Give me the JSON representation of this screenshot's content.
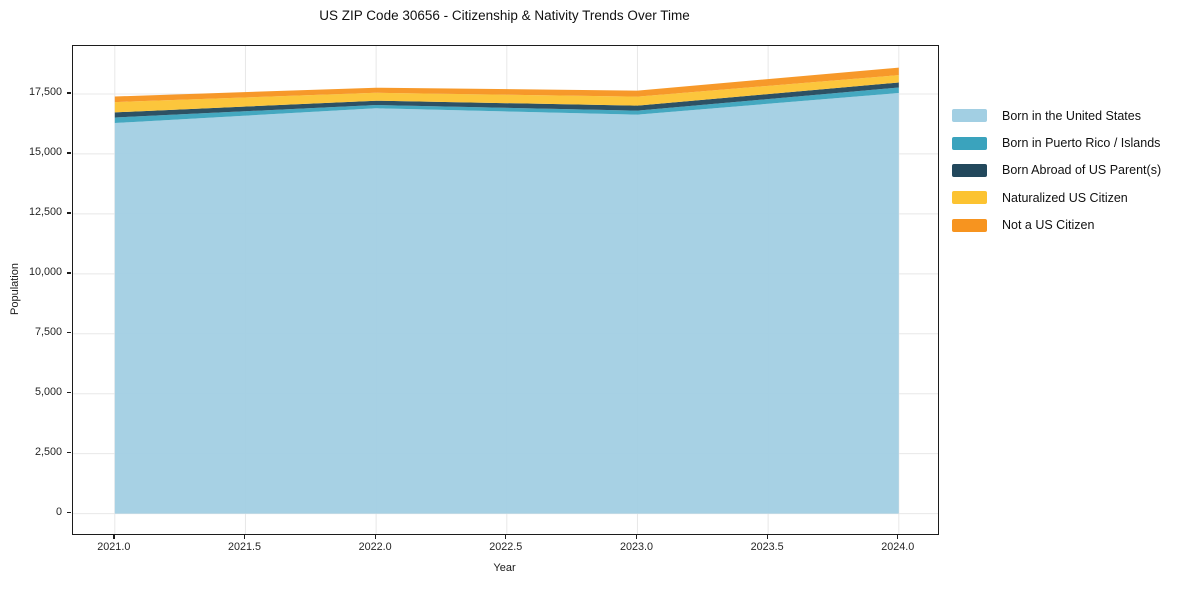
{
  "figure": {
    "title": "US ZIP Code 30656 - Citizenship & Nativity Trends Over Time"
  },
  "axes": {
    "xlabel": "Year",
    "ylabel": "Population",
    "xtick_labels": [
      "2021.0",
      "2021.5",
      "2022.0",
      "2022.5",
      "2023.0",
      "2023.5",
      "2024.0"
    ],
    "ytick_labels": [
      "0",
      "2,500",
      "5,000",
      "7,500",
      "10,000",
      "12,500",
      "15,000",
      "17,500"
    ]
  },
  "legend": {
    "position": "right",
    "items": [
      {
        "label": "Born in the United States",
        "color": "#a2cfe3"
      },
      {
        "label": "Born in Puerto Rico / Islands",
        "color": "#3aa3bd"
      },
      {
        "label": "Born Abroad of US Parent(s)",
        "color": "#22485c"
      },
      {
        "label": "Naturalized US Citizen",
        "color": "#fcc331"
      },
      {
        "label": "Not a US Citizen",
        "color": "#f7941f"
      }
    ]
  },
  "chart_data": {
    "type": "area",
    "stacked": true,
    "title": "US ZIP Code 30656 - Citizenship & Nativity Trends Over Time",
    "xlabel": "Year",
    "ylabel": "Population",
    "x": [
      2021,
      2022,
      2023,
      2024
    ],
    "series": [
      {
        "name": "Born in the United States",
        "color": "#a2cfe3",
        "values": [
          16290,
          16900,
          16640,
          17540
        ]
      },
      {
        "name": "Born in Puerto Rico / Islands",
        "color": "#3aa3bd",
        "values": [
          230,
          140,
          165,
          230
        ]
      },
      {
        "name": "Born Abroad of US Parent(s)",
        "color": "#22485c",
        "values": [
          210,
          180,
          210,
          210
        ]
      },
      {
        "name": "Naturalized US Citizen",
        "color": "#fcc331",
        "values": [
          430,
          330,
          375,
          305
        ]
      },
      {
        "name": "Not a US Citizen",
        "color": "#f7941f",
        "values": [
          235,
          210,
          250,
          315
        ]
      }
    ],
    "totals": [
      17395,
      17760,
      17640,
      18600
    ],
    "xticks": [
      2021.0,
      2021.5,
      2022.0,
      2022.5,
      2023.0,
      2023.5,
      2024.0
    ],
    "yticks": [
      0,
      2500,
      5000,
      7500,
      10000,
      12500,
      15000,
      17500
    ],
    "xlim": [
      2020.84,
      2024.15
    ],
    "ylim": [
      -850,
      19500
    ],
    "grid": true,
    "legend_position": "right"
  },
  "style": {
    "grid_color": "#e8e8e8",
    "spine_color": "#1c1c1c",
    "background": "#ffffff",
    "fill_opacity": 0.95
  }
}
